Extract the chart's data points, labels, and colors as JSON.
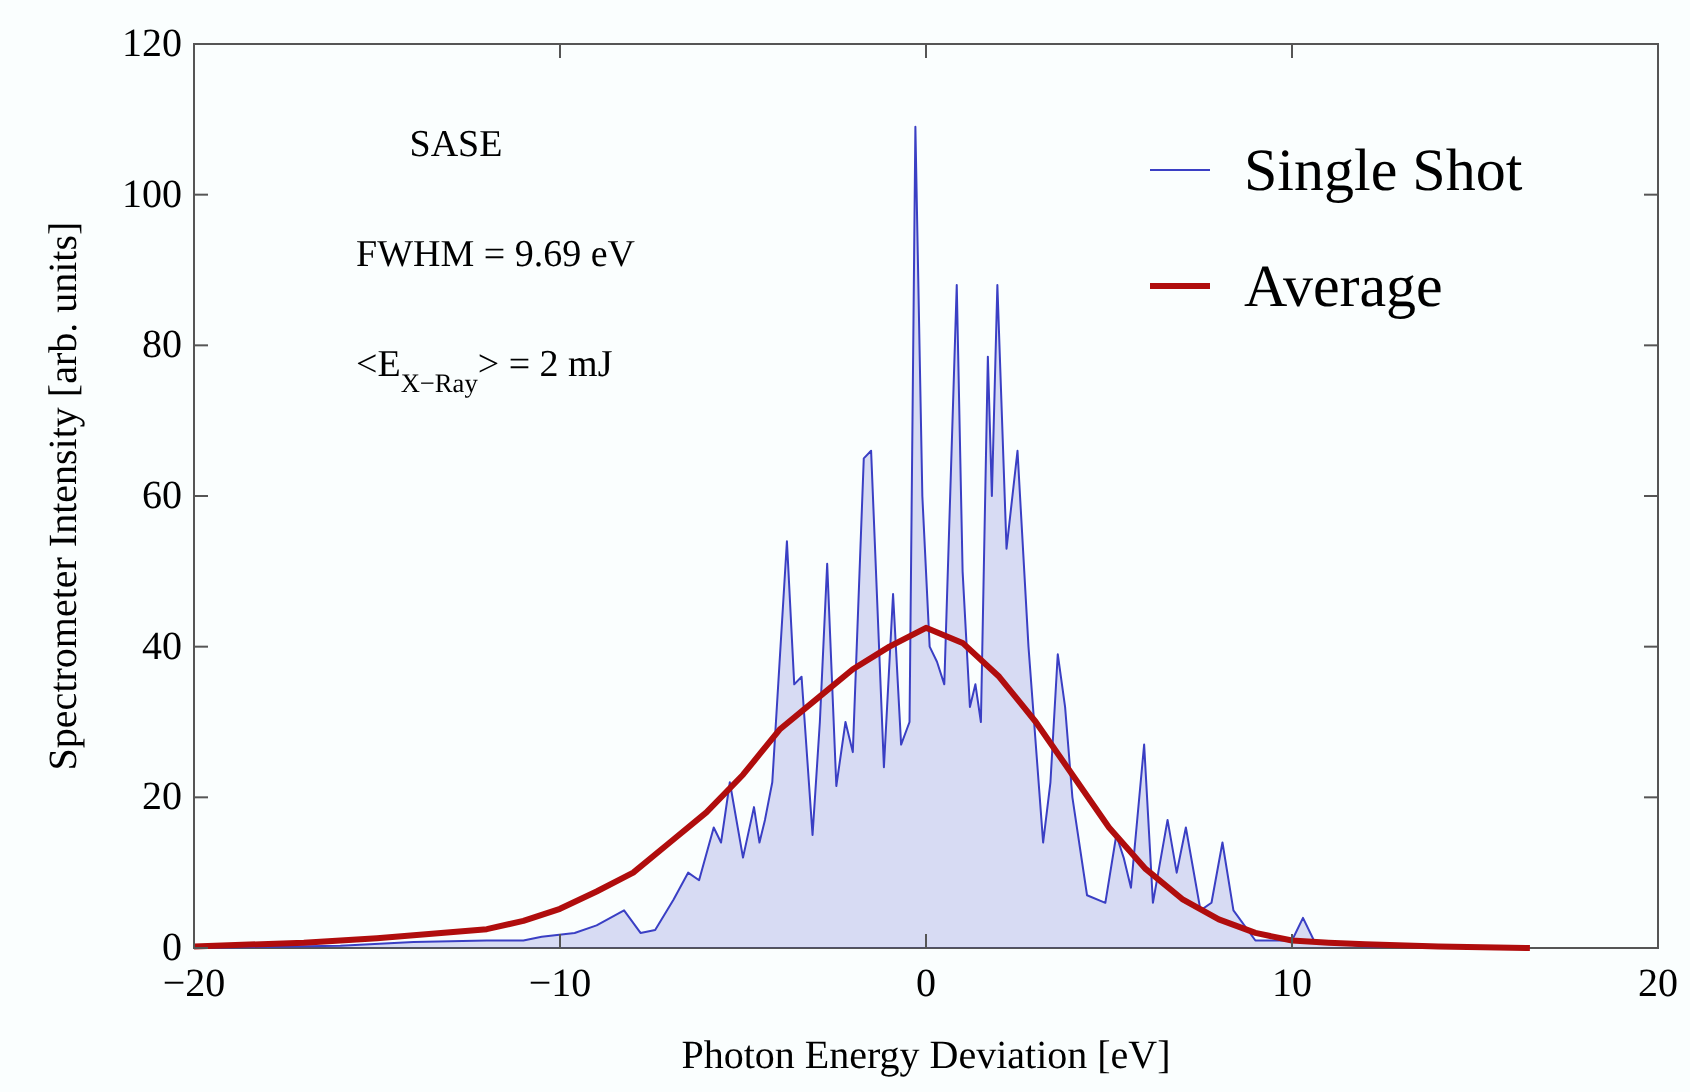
{
  "chart_data": {
    "type": "line",
    "xlabel": "Photon Energy Deviation [eV]",
    "ylabel": "Spectrometer Intensity [arb. units]",
    "xlim": [
      -20,
      20
    ],
    "ylim": [
      0,
      120
    ],
    "xticks": [
      {
        "value": -20,
        "label": "−20"
      },
      {
        "value": -10,
        "label": "−10"
      },
      0,
      10,
      20
    ],
    "yticks": [
      0,
      20,
      40,
      60,
      80,
      100,
      120
    ],
    "grid": false,
    "legend": "top right",
    "annotations": [
      "SASE",
      "FWHM = 9.69 eV",
      "<E$_{X−Ray}$> = 2 mJ"
    ],
    "series": [
      {
        "name": "Single Shot",
        "type": "area",
        "color": "#3a3fc4",
        "x": [
          -20,
          -16,
          -14,
          -12,
          -11,
          -10.5,
          -9.6,
          -9,
          -8.25,
          -7.8,
          -7.4,
          -6.9,
          -6.5,
          -6.2,
          -5.8,
          -5.6,
          -5.36,
          -5.0,
          -4.7,
          -4.55,
          -4.4,
          -4.2,
          -3.8,
          -3.6,
          -3.4,
          -3.1,
          -2.9,
          -2.7,
          -2.45,
          -2.2,
          -2.0,
          -1.7,
          -1.5,
          -1.15,
          -0.9,
          -0.68,
          -0.45,
          -0.29,
          -0.1,
          0.1,
          0.3,
          0.5,
          0.84,
          1.0,
          1.2,
          1.35,
          1.5,
          1.69,
          1.8,
          1.95,
          2.2,
          2.5,
          2.8,
          3.2,
          3.4,
          3.6,
          3.8,
          4.0,
          4.4,
          4.9,
          5.2,
          5.4,
          5.6,
          5.96,
          6.2,
          6.6,
          6.85,
          7.1,
          7.5,
          7.8,
          8.1,
          8.4,
          9,
          10,
          10.3,
          10.6,
          12,
          16
        ],
        "values": [
          0,
          0.3,
          0.8,
          1,
          1,
          1.5,
          2,
          3,
          5,
          2,
          2.4,
          6.4,
          10,
          9,
          16,
          14,
          22,
          12,
          18.7,
          14,
          17,
          22,
          54,
          35,
          36,
          15,
          30,
          51,
          21.5,
          30,
          26,
          65,
          66,
          24,
          47,
          27,
          30,
          109,
          60,
          40,
          38,
          35,
          88,
          50,
          32,
          35,
          30,
          78.5,
          60,
          88,
          53,
          66,
          40,
          14,
          22,
          39,
          32,
          20,
          7,
          6,
          15,
          12,
          8,
          27,
          6,
          17,
          10,
          16,
          5,
          6,
          14,
          5,
          1,
          1,
          4,
          1,
          0.2,
          0
        ]
      },
      {
        "name": "Average",
        "color": "#b00d0d",
        "x": [
          -20,
          -17,
          -15,
          -13,
          -12,
          -11,
          -10,
          -9,
          -8,
          -7,
          -6,
          -5,
          -4,
          -3,
          -2,
          -1,
          0,
          1,
          2,
          3,
          4,
          5,
          6,
          7,
          8,
          9,
          10,
          11,
          12,
          14,
          16.5
        ],
        "values": [
          0.2,
          0.7,
          1.3,
          2.1,
          2.5,
          3.6,
          5.2,
          7.5,
          10,
          14,
          18,
          23,
          29,
          33,
          37,
          40,
          42.5,
          40.5,
          36,
          30,
          23,
          16,
          10.5,
          6.5,
          3.8,
          2,
          1,
          0.7,
          0.5,
          0.2,
          0
        ]
      }
    ]
  }
}
